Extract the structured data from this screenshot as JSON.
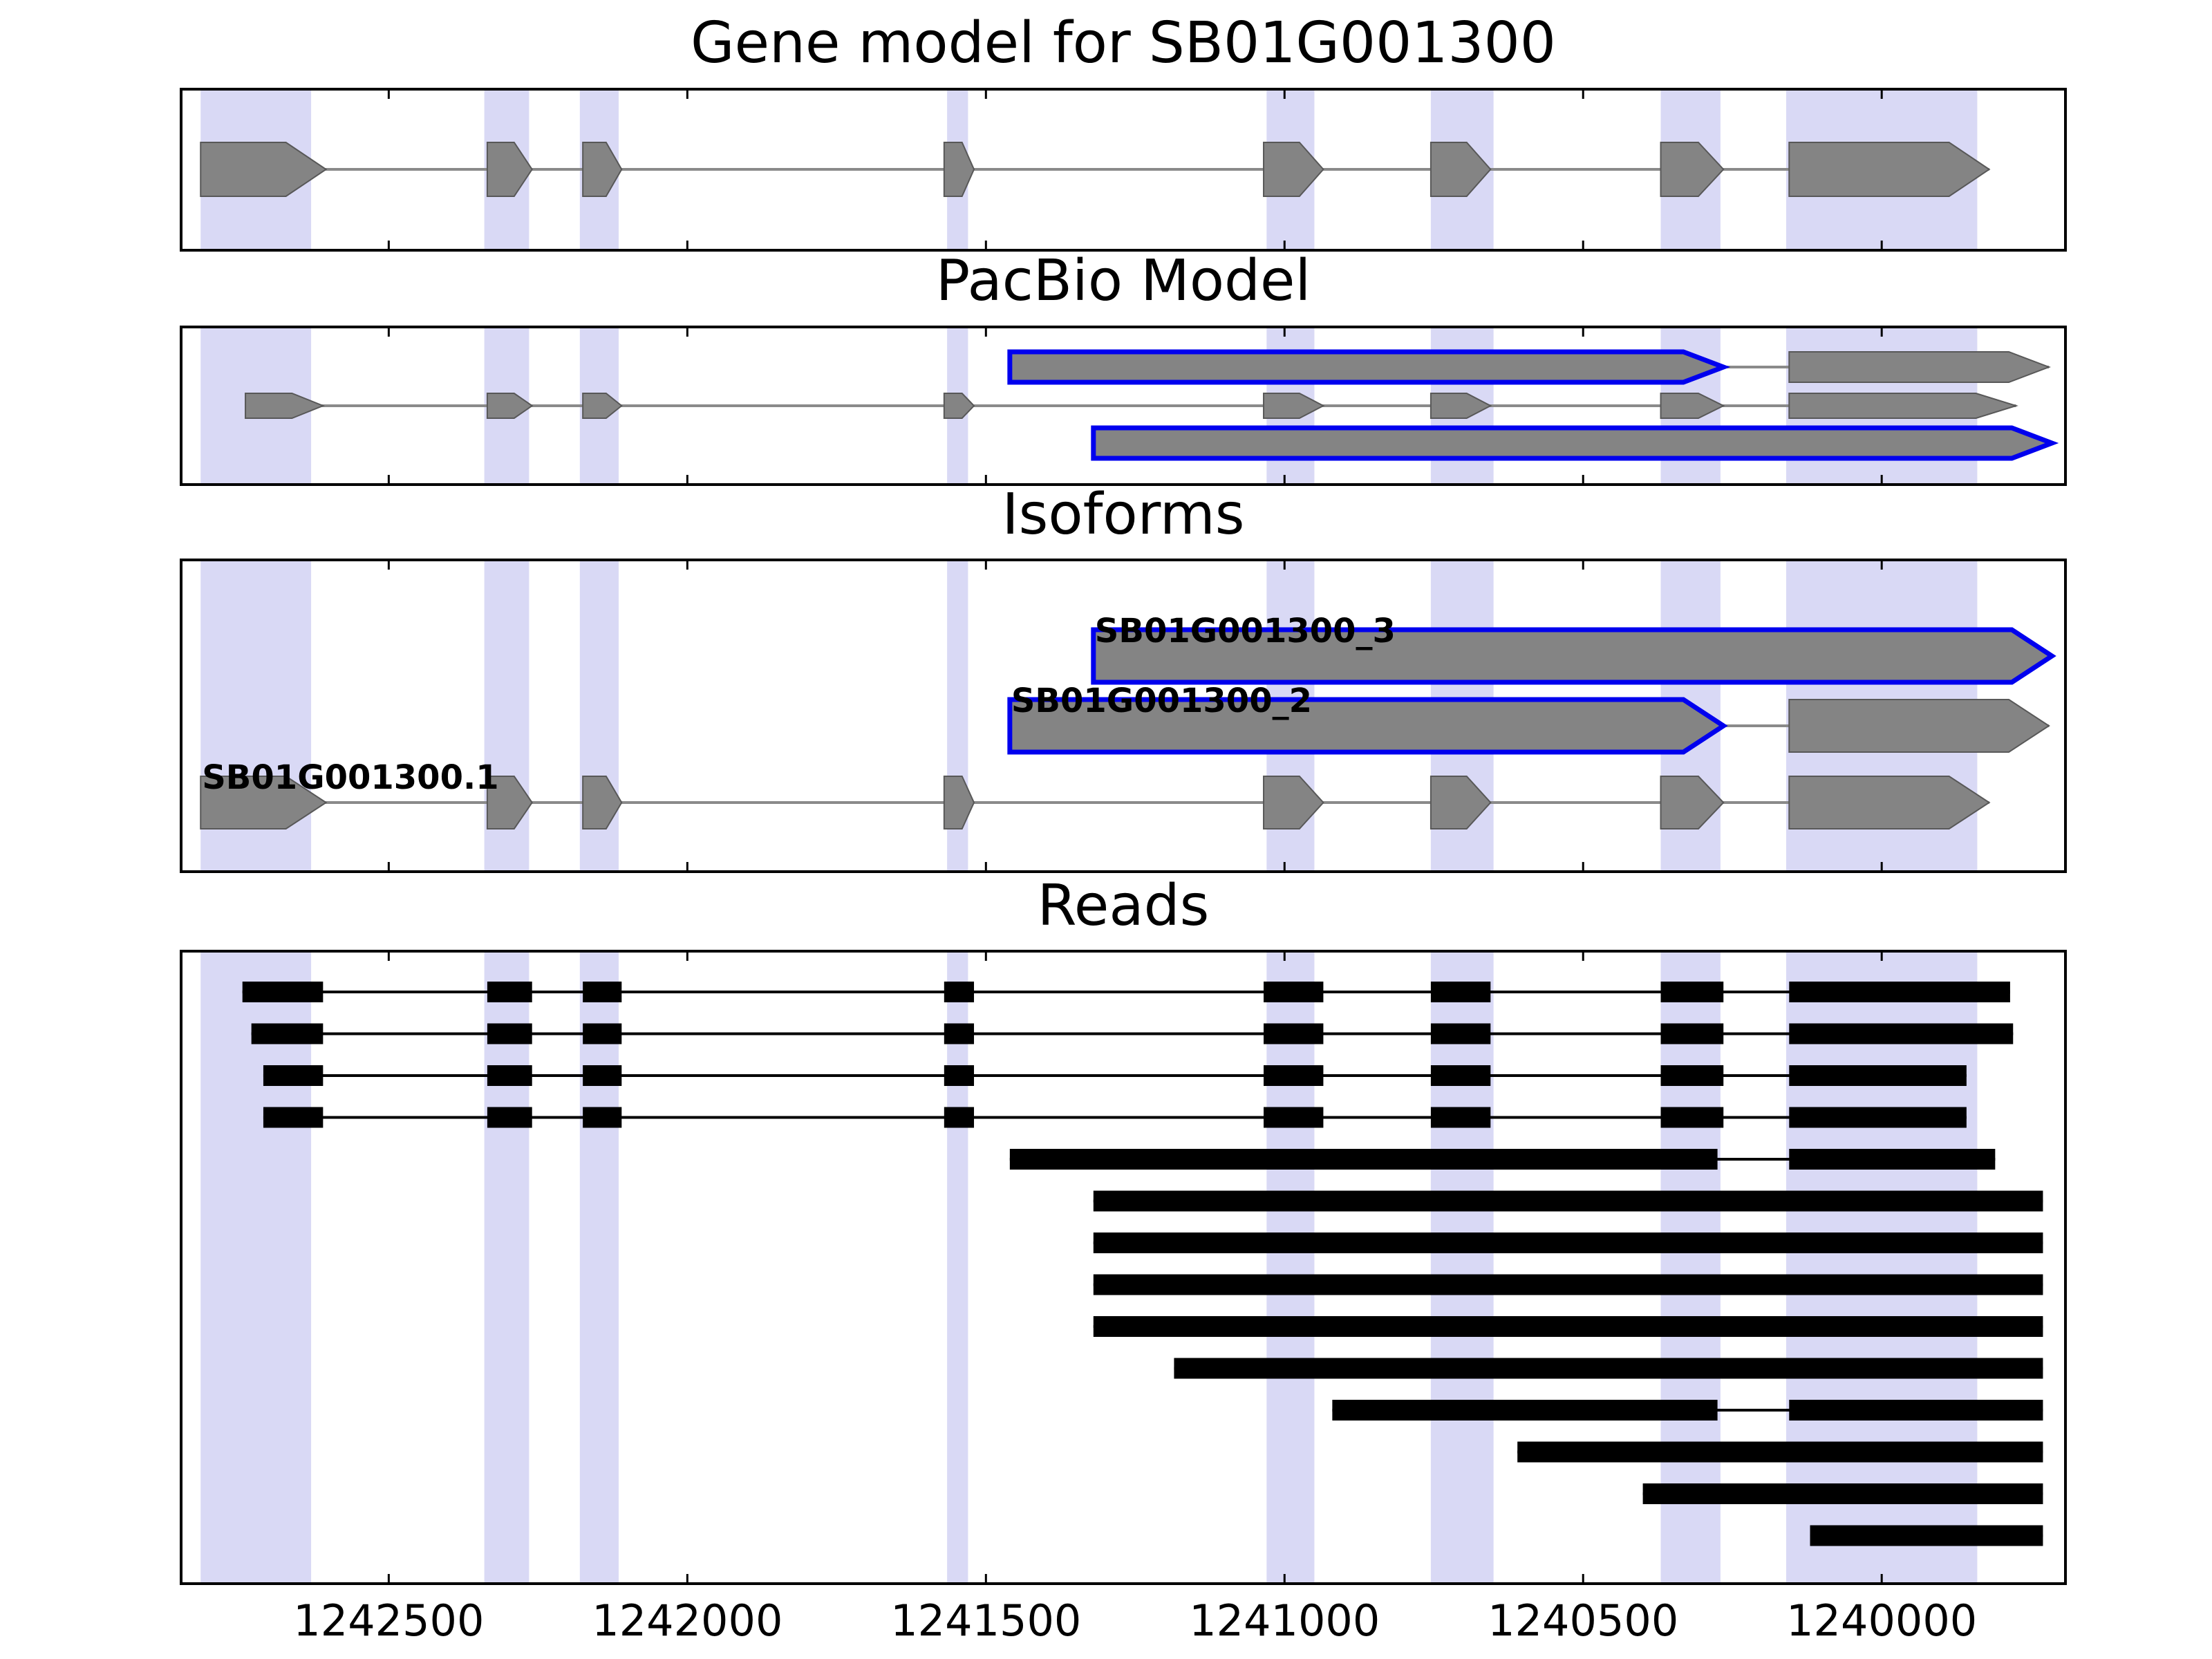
{
  "figure": {
    "background": "#ffffff",
    "colors": {
      "band": "#d9d9f5",
      "gene_fill": "#848484",
      "gene_edge": "#585858",
      "connector": "#8a8a8a",
      "highlight": "#0000ee",
      "read": "#000000",
      "axis": "#000000",
      "label_text": "#000000"
    }
  },
  "chart_data": {
    "type": "gene-model-tracks",
    "x_axis": {
      "orientation": "reversed",
      "left_coord": 1242850,
      "right_coord": 1239690,
      "ticks": [
        {
          "value": 1242500,
          "label": "1242500"
        },
        {
          "value": 1242000,
          "label": "1242000"
        },
        {
          "value": 1241500,
          "label": "1241500"
        },
        {
          "value": 1241000,
          "label": "1241000"
        },
        {
          "value": 1240500,
          "label": "1240500"
        },
        {
          "value": 1240000,
          "label": "1240000"
        }
      ]
    },
    "highlight_bands": [
      {
        "start": 1242815,
        "end": 1242630
      },
      {
        "start": 1242340,
        "end": 1242265
      },
      {
        "start": 1242180,
        "end": 1242115
      },
      {
        "start": 1241565,
        "end": 1241530
      },
      {
        "start": 1241030,
        "end": 1240950
      },
      {
        "start": 1240755,
        "end": 1240650
      },
      {
        "start": 1240370,
        "end": 1240270
      },
      {
        "start": 1240160,
        "end": 1239840
      }
    ],
    "panels": [
      {
        "id": "gene-model",
        "title": "Gene model for SB01G001300",
        "rows": [
          {
            "kind": "model",
            "segments": [
              {
                "start": 1242815,
                "end": 1242605,
                "outlined": false
              },
              {
                "start": 1242335,
                "end": 1242260,
                "outlined": false
              },
              {
                "start": 1242175,
                "end": 1242110,
                "outlined": false
              },
              {
                "start": 1241570,
                "end": 1241520,
                "outlined": false
              },
              {
                "start": 1241035,
                "end": 1240935,
                "outlined": false
              },
              {
                "start": 1240755,
                "end": 1240655,
                "outlined": false
              },
              {
                "start": 1240370,
                "end": 1240265,
                "outlined": false
              },
              {
                "start": 1240155,
                "end": 1239820,
                "outlined": false
              }
            ]
          }
        ]
      },
      {
        "id": "pacbio-model",
        "title": "PacBio Model",
        "rows": [
          {
            "kind": "model",
            "segments": [
              {
                "start": 1241460,
                "end": 1240265,
                "outlined": true
              },
              {
                "start": 1240155,
                "end": 1239720,
                "outlined": false
              }
            ]
          },
          {
            "kind": "model",
            "segments": [
              {
                "start": 1242740,
                "end": 1242610,
                "outlined": false
              },
              {
                "start": 1242335,
                "end": 1242260,
                "outlined": false
              },
              {
                "start": 1242175,
                "end": 1242110,
                "outlined": false
              },
              {
                "start": 1241570,
                "end": 1241520,
                "outlined": false
              },
              {
                "start": 1241035,
                "end": 1240935,
                "outlined": false
              },
              {
                "start": 1240755,
                "end": 1240655,
                "outlined": false
              },
              {
                "start": 1240370,
                "end": 1240265,
                "outlined": false
              },
              {
                "start": 1240155,
                "end": 1239775,
                "outlined": false
              }
            ]
          },
          {
            "kind": "model",
            "segments": [
              {
                "start": 1241320,
                "end": 1239715,
                "outlined": true
              }
            ]
          }
        ]
      },
      {
        "id": "isoforms",
        "title": "Isoforms",
        "rows": [
          {
            "kind": "model",
            "label": "SB01G001300_3",
            "segments": [
              {
                "start": 1241320,
                "end": 1239715,
                "outlined": true
              }
            ]
          },
          {
            "kind": "model",
            "label": "SB01G001300_2",
            "segments": [
              {
                "start": 1241460,
                "end": 1240265,
                "outlined": true
              },
              {
                "start": 1240155,
                "end": 1239720,
                "outlined": false
              }
            ]
          },
          {
            "kind": "model",
            "label": "SB01G001300.1",
            "segments": [
              {
                "start": 1242815,
                "end": 1242605,
                "outlined": false
              },
              {
                "start": 1242335,
                "end": 1242260,
                "outlined": false
              },
              {
                "start": 1242175,
                "end": 1242110,
                "outlined": false
              },
              {
                "start": 1241570,
                "end": 1241520,
                "outlined": false
              },
              {
                "start": 1241035,
                "end": 1240935,
                "outlined": false
              },
              {
                "start": 1240755,
                "end": 1240655,
                "outlined": false
              },
              {
                "start": 1240370,
                "end": 1240265,
                "outlined": false
              },
              {
                "start": 1240155,
                "end": 1239820,
                "outlined": false
              }
            ]
          }
        ]
      },
      {
        "id": "reads",
        "title": "Reads",
        "rows": [
          {
            "kind": "read",
            "segments": [
              {
                "start": 1242745,
                "end": 1242610
              },
              {
                "start": 1242335,
                "end": 1242260
              },
              {
                "start": 1242175,
                "end": 1242110
              },
              {
                "start": 1241570,
                "end": 1241520
              },
              {
                "start": 1241035,
                "end": 1240935
              },
              {
                "start": 1240755,
                "end": 1240655
              },
              {
                "start": 1240370,
                "end": 1240265
              },
              {
                "start": 1240155,
                "end": 1239785
              }
            ]
          },
          {
            "kind": "read",
            "segments": [
              {
                "start": 1242730,
                "end": 1242610
              },
              {
                "start": 1242335,
                "end": 1242260
              },
              {
                "start": 1242175,
                "end": 1242110
              },
              {
                "start": 1241570,
                "end": 1241520
              },
              {
                "start": 1241035,
                "end": 1240935
              },
              {
                "start": 1240755,
                "end": 1240655
              },
              {
                "start": 1240370,
                "end": 1240265
              },
              {
                "start": 1240155,
                "end": 1239780
              }
            ]
          },
          {
            "kind": "read",
            "segments": [
              {
                "start": 1242710,
                "end": 1242610
              },
              {
                "start": 1242335,
                "end": 1242260
              },
              {
                "start": 1242175,
                "end": 1242110
              },
              {
                "start": 1241570,
                "end": 1241520
              },
              {
                "start": 1241035,
                "end": 1240935
              },
              {
                "start": 1240755,
                "end": 1240655
              },
              {
                "start": 1240370,
                "end": 1240265
              },
              {
                "start": 1240155,
                "end": 1239858
              }
            ]
          },
          {
            "kind": "read",
            "segments": [
              {
                "start": 1242710,
                "end": 1242610
              },
              {
                "start": 1242335,
                "end": 1242260
              },
              {
                "start": 1242175,
                "end": 1242110
              },
              {
                "start": 1241570,
                "end": 1241520
              },
              {
                "start": 1241035,
                "end": 1240935
              },
              {
                "start": 1240755,
                "end": 1240655
              },
              {
                "start": 1240370,
                "end": 1240265
              },
              {
                "start": 1240155,
                "end": 1239858
              }
            ]
          },
          {
            "kind": "read",
            "segments": [
              {
                "start": 1241460,
                "end": 1240275
              },
              {
                "start": 1240155,
                "end": 1239810
              }
            ]
          },
          {
            "kind": "read",
            "segments": [
              {
                "start": 1241320,
                "end": 1239730
              }
            ]
          },
          {
            "kind": "read",
            "segments": [
              {
                "start": 1241320,
                "end": 1239730
              }
            ]
          },
          {
            "kind": "read",
            "segments": [
              {
                "start": 1241320,
                "end": 1239730
              }
            ]
          },
          {
            "kind": "read",
            "segments": [
              {
                "start": 1241320,
                "end": 1239730
              }
            ]
          },
          {
            "kind": "read",
            "segments": [
              {
                "start": 1241185,
                "end": 1239730
              }
            ]
          },
          {
            "kind": "read",
            "segments": [
              {
                "start": 1240920,
                "end": 1240275
              },
              {
                "start": 1240155,
                "end": 1239730
              }
            ]
          },
          {
            "kind": "read",
            "segments": [
              {
                "start": 1240610,
                "end": 1239730
              }
            ]
          },
          {
            "kind": "read",
            "segments": [
              {
                "start": 1240400,
                "end": 1239730
              }
            ]
          },
          {
            "kind": "read",
            "segments": [
              {
                "start": 1240120,
                "end": 1239730
              }
            ]
          }
        ]
      }
    ]
  }
}
